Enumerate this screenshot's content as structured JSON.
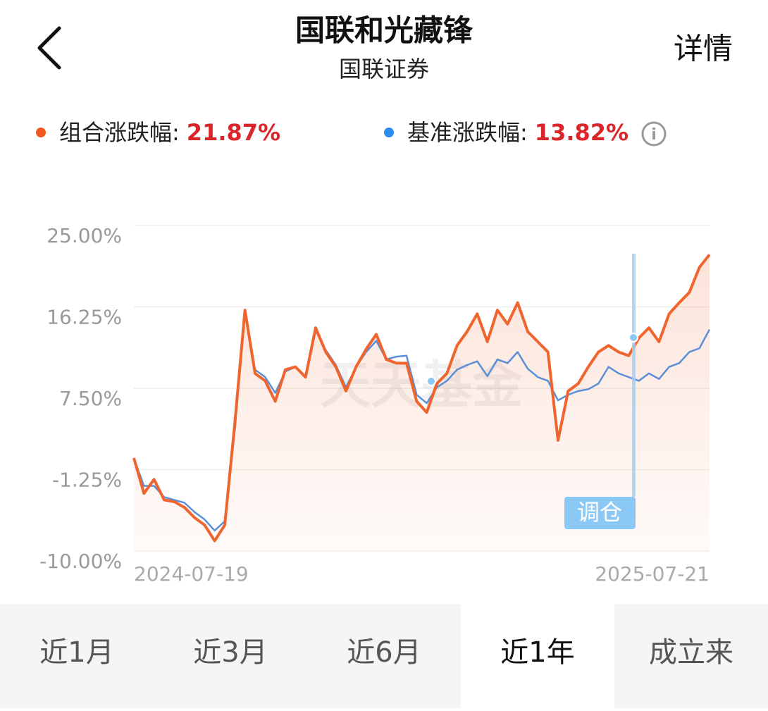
{
  "header": {
    "title": "国联和光藏锋",
    "subtitle": "国联证券",
    "action": "详情"
  },
  "legend_values": [
    "21.87%",
    "13.82%"
  ],
  "chart_data": {
    "type": "line",
    "categories": [
      "2024-07-19",
      null,
      null,
      null,
      null,
      null,
      null,
      null,
      null,
      null,
      null,
      null,
      null,
      null,
      null,
      null,
      null,
      null,
      null,
      null,
      null,
      null,
      null,
      null,
      null,
      null,
      null,
      null,
      null,
      null,
      null,
      null,
      null,
      null,
      null,
      null,
      null,
      null,
      null,
      null,
      null,
      null,
      null,
      null,
      null,
      null,
      null,
      null,
      null,
      null,
      null,
      null,
      null,
      null,
      null,
      null,
      null,
      "2025-07-21"
    ],
    "series": [
      {
        "name": "组合涨跌幅:",
        "color": "#f0642d",
        "values": [
          0,
          -3.8,
          -2.3,
          -4.5,
          -4.7,
          -5.3,
          -6.4,
          -7.2,
          -8.9,
          -7.2,
          3.8,
          15.9,
          9.1,
          8.3,
          6.1,
          9.5,
          9.8,
          8.7,
          14.0,
          11.4,
          9.8,
          7.2,
          9.8,
          11.7,
          13.3,
          10.6,
          10.2,
          10.2,
          6.1,
          4.9,
          8.0,
          9.1,
          12.1,
          13.6,
          15.5,
          12.5,
          15.9,
          14.4,
          16.7,
          13.6,
          12.5,
          11.4,
          1.9,
          7.2,
          8.0,
          9.8,
          11.4,
          12.1,
          11.4,
          11.0,
          12.9,
          14.0,
          12.5,
          15.5,
          16.7,
          17.8,
          20.5,
          21.87
        ]
      },
      {
        "name": "基准涨跌幅:",
        "color": "#5b8fd6",
        "values": [
          0,
          -3.0,
          -3.0,
          -4.2,
          -4.5,
          -4.8,
          -5.8,
          -6.6,
          -7.8,
          -6.8,
          3.0,
          15.9,
          9.5,
          8.7,
          7.0,
          9.3,
          9.8,
          8.7,
          13.7,
          11.6,
          10.0,
          7.6,
          9.8,
          11.4,
          12.6,
          10.6,
          10.9,
          11.0,
          6.8,
          5.9,
          7.6,
          8.3,
          9.5,
          10.0,
          10.4,
          8.8,
          10.6,
          10.2,
          11.4,
          9.6,
          8.7,
          8.3,
          6.2,
          6.8,
          7.2,
          7.4,
          8.0,
          9.8,
          9.1,
          8.7,
          8.3,
          9.1,
          8.5,
          9.8,
          10.2,
          11.4,
          11.8,
          13.82
        ]
      }
    ],
    "ylim": [
      -10,
      25
    ],
    "yticks": [
      {
        "value": -10,
        "label": "-10.00%"
      },
      {
        "value": -1.25,
        "label": "-1.25%"
      },
      {
        "value": 7.5,
        "label": "7.50%"
      },
      {
        "value": 16.25,
        "label": "16.25%"
      },
      {
        "value": 25,
        "label": "25.00%"
      }
    ],
    "grid": true,
    "annotation": "调仓",
    "watermark": "天天基金"
  },
  "tabs": [
    "近1月",
    "近3月",
    "近6月",
    "近1年",
    "成立来"
  ],
  "selected_tab": "近1年"
}
